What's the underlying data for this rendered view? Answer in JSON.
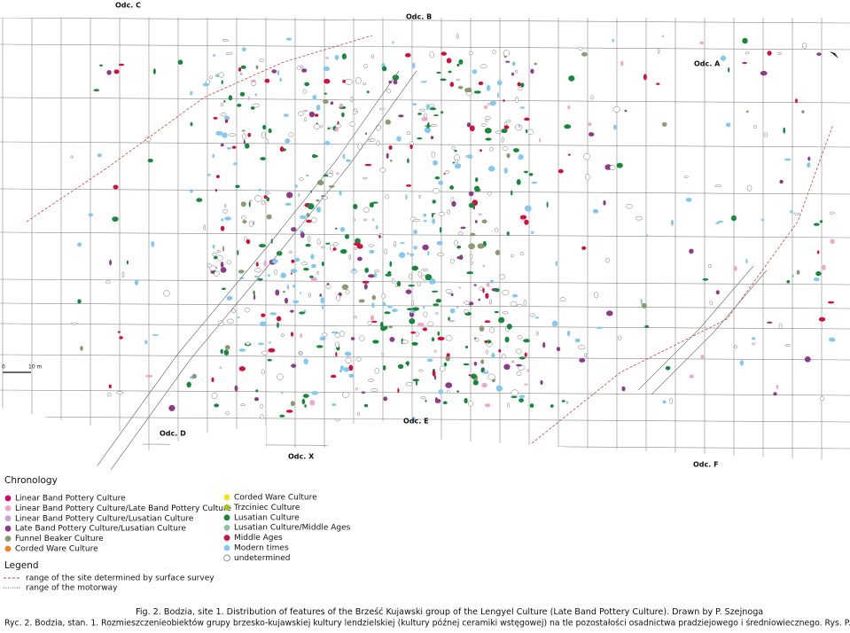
{
  "map": {
    "section_labels": [
      "Odc. C",
      "Odc. B",
      "Odc. A",
      "Odc. D",
      "Odc. E",
      "Odc. X",
      "Odc. F"
    ],
    "scale": {
      "start": "0",
      "end": "10 m"
    }
  },
  "chronology": {
    "title": "Chronology",
    "items": [
      {
        "label": "Linear Band Pottery Culture",
        "color": "#d6006f"
      },
      {
        "label": "Linear Band Pottery Culture/Late Band Pottery Culture",
        "color": "#f2a6cc"
      },
      {
        "label": "Linear Band Pottery Culture/Lusatian Culture",
        "color": "#caa2cc"
      },
      {
        "label": "Late Band Pottery Culture/Lusatian Culture",
        "color": "#8e3a8a"
      },
      {
        "label": "Funnel Beaker Culture",
        "color": "#8c9a72"
      },
      {
        "label": "Corded Ware Culture",
        "color": "#f08020"
      },
      {
        "label": "Corded Ware Culture",
        "color": "#f2e21c"
      },
      {
        "label": "Trzciniec Culture",
        "color": "#a2c21e"
      },
      {
        "label": "Lusatian Culture",
        "color": "#17883a"
      },
      {
        "label": "Lusatian Culture/Middle Ages",
        "color": "#94c2a4"
      },
      {
        "label": "Middle Ages",
        "color": "#d2103c"
      },
      {
        "label": "Modern times",
        "color": "#82c8f0"
      },
      {
        "label": "undetermined",
        "color": "#ffffff"
      }
    ]
  },
  "legend": {
    "title": "Legend",
    "lines": [
      {
        "label": "range of the site determined by surface survey",
        "color": "#d04040",
        "style": "dashed"
      },
      {
        "label": "range of the motorway",
        "color": "#555555",
        "style": "dotted"
      }
    ]
  },
  "caption": {
    "english": "Fig. 2. Bodzia, site 1. Distribution of features of the Brześć Kujawski group of the Lengyel Culture (Late Band Pottery Culture). Drawn by P. Szejnoga",
    "polish": "Ryc. 2. Bodzia, stan. 1. Rozmieszczenieobiektów grupy brzesko-kujawskiej kultury lendzielskiej (kultury późnej ceramiki wstęgowej) na tle pozostałości osadnictwa pradziejowego i średniowiecznego. Rys. P. Szejnoga"
  }
}
